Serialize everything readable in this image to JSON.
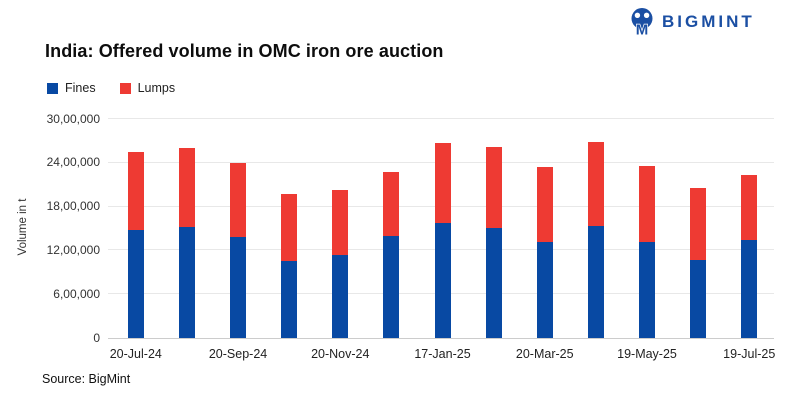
{
  "header": {
    "title": "India: Offered volume in OMC iron ore auction"
  },
  "logo": {
    "text": "BIGMINT",
    "color": "#1b4fa3"
  },
  "source_note": "Source: BigMint",
  "colors": {
    "fines": "#0849a3",
    "lumps": "#ee3a33",
    "gridline": "#e8e8e8",
    "baseline": "#cccccc"
  },
  "chart_data": {
    "type": "bar",
    "stacked": true,
    "title": "India: Offered volume in OMC iron ore auction",
    "xlabel": "",
    "ylabel": "Volume in t",
    "ylim": [
      0,
      3000000
    ],
    "ytick_interval": 600000,
    "ytick_labels": [
      "0",
      "6,00,000",
      "12,00,000",
      "18,00,000",
      "24,00,000",
      "30,00,000"
    ],
    "grid": true,
    "legend_position": "top-left",
    "categories": [
      "20-Jul-24",
      "",
      "20-Sep-24",
      "",
      "20-Nov-24",
      "",
      "17-Jan-25",
      "",
      "20-Mar-25",
      "",
      "19-May-25",
      "",
      "19-Jul-25"
    ],
    "series": [
      {
        "name": "Fines",
        "color": "#0849a3",
        "values": [
          1480000,
          1520000,
          1380000,
          1060000,
          1140000,
          1400000,
          1580000,
          1510000,
          1320000,
          1530000,
          1320000,
          1070000,
          1340000
        ]
      },
      {
        "name": "Lumps",
        "color": "#ee3a33",
        "values": [
          1070000,
          1080000,
          1020000,
          910000,
          890000,
          870000,
          1090000,
          1100000,
          1020000,
          1150000,
          1040000,
          990000,
          900000
        ]
      }
    ]
  }
}
